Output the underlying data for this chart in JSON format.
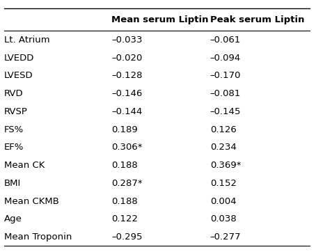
{
  "rows": [
    [
      "Lt. Atrium",
      "–0.033",
      "–0.061"
    ],
    [
      "LVEDD",
      "–0.020",
      "–0.094"
    ],
    [
      "LVESD",
      "–0.128",
      "–0.170"
    ],
    [
      "RVD",
      "–0.146",
      "–0.081"
    ],
    [
      "RVSP",
      "–0.144",
      "–0.145"
    ],
    [
      "FS%",
      "0.189",
      "0.126"
    ],
    [
      "EF%",
      "0.306*",
      "0.234"
    ],
    [
      "Mean CK",
      "0.188",
      "0.369*"
    ],
    [
      "BMI",
      "0.287*",
      "0.152"
    ],
    [
      "Mean CKMB",
      "0.188",
      "0.004"
    ],
    [
      "Age",
      "0.122",
      "0.038"
    ],
    [
      "Mean Troponin",
      "–0.295",
      "–0.277"
    ]
  ],
  "col_headers": [
    "",
    "Mean serum Liptin",
    "Peak serum Liptin"
  ],
  "background_color": "#ffffff",
  "header_fontsize": 9.5,
  "cell_fontsize": 9.5,
  "text_color": "#000000",
  "line_color": "#000000"
}
